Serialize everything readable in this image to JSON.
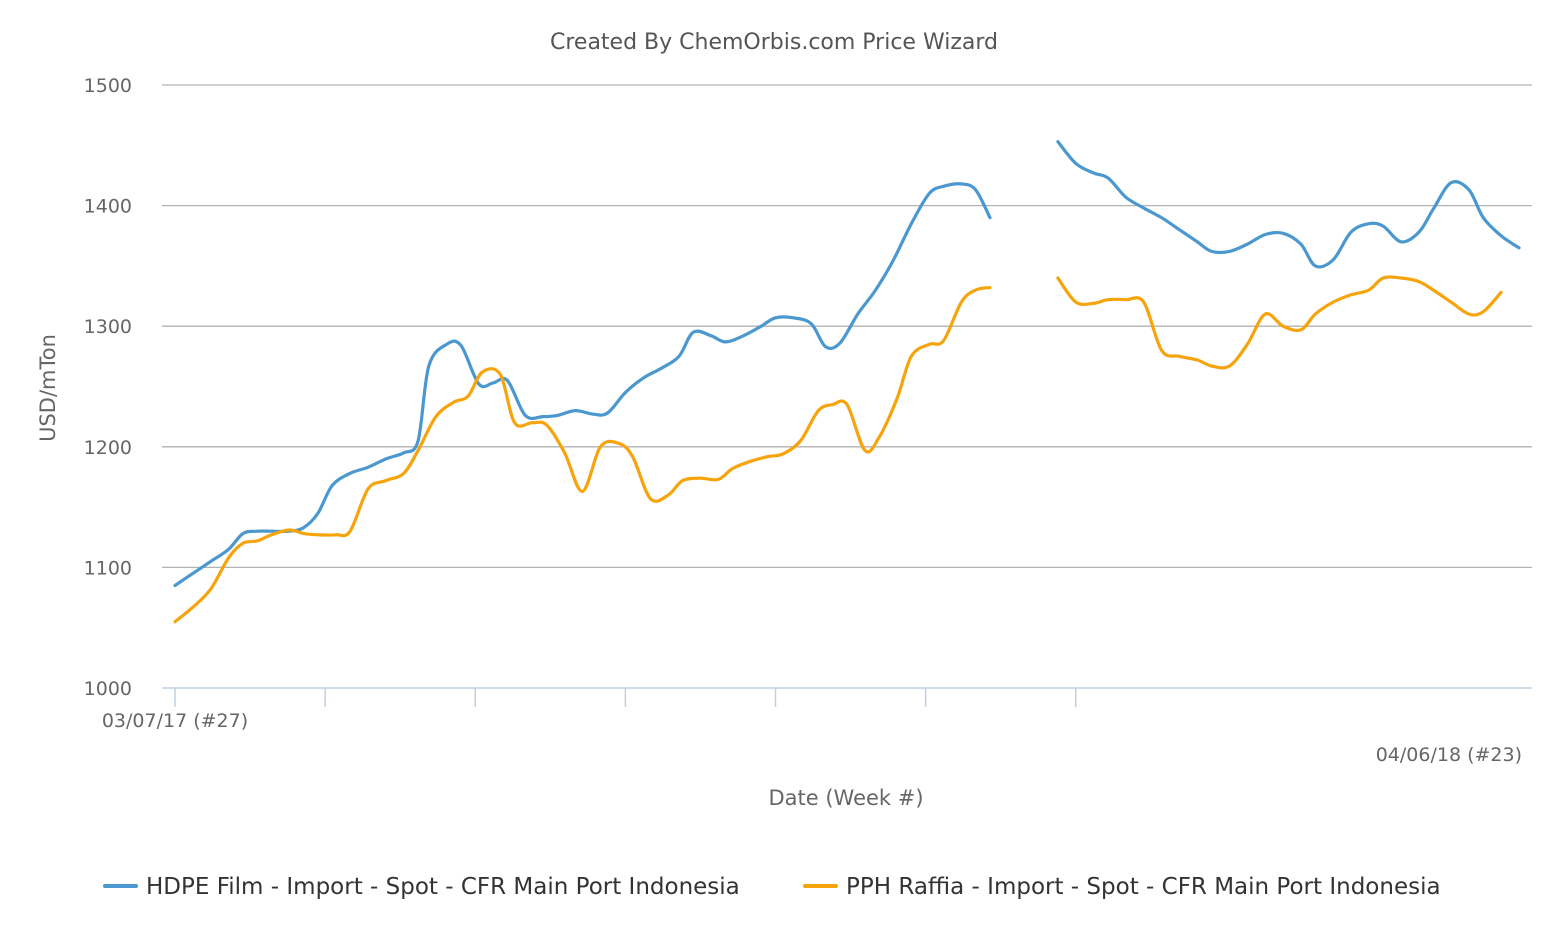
{
  "chart_data": {
    "type": "line",
    "title": "Created By ChemOrbis.com Price Wizard",
    "xlabel": "Date (Week #)",
    "ylabel": "USD/mTon",
    "ylim": [
      1000,
      1500
    ],
    "yticks": [
      1000,
      1100,
      1200,
      1300,
      1400,
      1500
    ],
    "x_start_label": "03/07/17 (#27)",
    "x_end_label": "04/06/18 (#23)",
    "x_start": "2017-07-03",
    "x_end": "2018-06-04",
    "x_tick_dates": [
      "2017-07-03",
      "2017-08-14",
      "2017-09-25",
      "2017-11-06",
      "2017-12-18",
      "2018-01-29",
      "2018-03-12"
    ],
    "grid": true,
    "legend_position": "bottom",
    "series": [
      {
        "name": "HDPE Film - Import - Spot - CFR Main Port Indonesia",
        "color": "#4a98cf",
        "points": [
          [
            "2017-07-03",
            1085
          ],
          [
            "2017-07-08",
            1095
          ],
          [
            "2017-07-13",
            1105
          ],
          [
            "2017-07-18",
            1115
          ],
          [
            "2017-07-22",
            1128
          ],
          [
            "2017-07-26",
            1130
          ],
          [
            "2017-07-30",
            1130
          ],
          [
            "2017-08-04",
            1130
          ],
          [
            "2017-08-08",
            1133
          ],
          [
            "2017-08-12",
            1145
          ],
          [
            "2017-08-16",
            1168
          ],
          [
            "2017-08-21",
            1178
          ],
          [
            "2017-08-26",
            1183
          ],
          [
            "2017-08-31",
            1190
          ],
          [
            "2017-09-05",
            1195
          ],
          [
            "2017-09-09",
            1205
          ],
          [
            "2017-09-12",
            1267
          ],
          [
            "2017-09-17",
            1285
          ],
          [
            "2017-09-21",
            1284
          ],
          [
            "2017-09-26",
            1252
          ],
          [
            "2017-09-30",
            1253
          ],
          [
            "2017-10-04",
            1255
          ],
          [
            "2017-10-09",
            1226
          ],
          [
            "2017-10-14",
            1225
          ],
          [
            "2017-10-18",
            1226
          ],
          [
            "2017-10-23",
            1230
          ],
          [
            "2017-10-28",
            1227
          ],
          [
            "2017-11-01",
            1228
          ],
          [
            "2017-11-06",
            1245
          ],
          [
            "2017-11-11",
            1257
          ],
          [
            "2017-11-16",
            1265
          ],
          [
            "2017-11-21",
            1275
          ],
          [
            "2017-11-25",
            1295
          ],
          [
            "2017-11-30",
            1292
          ],
          [
            "2017-12-04",
            1287
          ],
          [
            "2017-12-09",
            1292
          ],
          [
            "2017-12-14",
            1300
          ],
          [
            "2017-12-18",
            1307
          ],
          [
            "2017-12-23",
            1307
          ],
          [
            "2017-12-28",
            1302
          ],
          [
            "2018-01-01",
            1283
          ],
          [
            "2018-01-05",
            1286
          ],
          [
            "2018-01-10",
            1310
          ],
          [
            "2018-01-15",
            1330
          ],
          [
            "2018-01-20",
            1355
          ],
          [
            "2018-01-25",
            1385
          ],
          [
            "2018-01-30",
            1410
          ],
          [
            "2018-02-03",
            1416
          ],
          [
            "2018-02-08",
            1418
          ],
          [
            "2018-02-12",
            1413
          ],
          [
            "2018-02-16",
            1390
          ],
          null,
          [
            "2018-03-07",
            1453
          ],
          [
            "2018-03-12",
            1435
          ],
          [
            "2018-03-17",
            1427
          ],
          [
            "2018-03-21",
            1423
          ],
          [
            "2018-03-26",
            1407
          ],
          [
            "2018-03-31",
            1398
          ],
          [
            "2018-04-05",
            1390
          ],
          [
            "2018-04-10",
            1380
          ],
          [
            "2018-04-15",
            1370
          ],
          [
            "2018-04-19",
            1362
          ],
          [
            "2018-04-24",
            1362
          ],
          [
            "2018-04-29",
            1368
          ],
          [
            "2018-05-04",
            1376
          ],
          [
            "2018-05-09",
            1377
          ],
          [
            "2018-05-14",
            1368
          ],
          [
            "2018-05-18",
            1350
          ],
          [
            "2018-05-23",
            1355
          ],
          [
            "2018-05-28",
            1378
          ],
          [
            "2018-06-02",
            1385
          ],
          [
            "2018-06-06",
            1383
          ],
          [
            "2018-06-11",
            1370
          ],
          [
            "2018-06-16",
            1378
          ],
          [
            "2018-06-20",
            1397
          ],
          [
            "2018-06-25",
            1419
          ],
          [
            "2018-06-30",
            1413
          ],
          [
            "2018-07-04",
            1390
          ],
          [
            "2018-07-09",
            1375
          ],
          [
            "2018-07-14",
            1365
          ]
        ]
      },
      {
        "name": "PPH Raffia - Import - Spot - CFR Main Port Indonesia",
        "color": "#f7a40c",
        "points": [
          [
            "2017-07-03",
            1055
          ],
          [
            "2017-07-08",
            1067
          ],
          [
            "2017-07-13",
            1082
          ],
          [
            "2017-07-18",
            1108
          ],
          [
            "2017-07-22",
            1120
          ],
          [
            "2017-07-26",
            1122
          ],
          [
            "2017-07-30",
            1127
          ],
          [
            "2017-08-04",
            1131
          ],
          [
            "2017-08-08",
            1128
          ],
          [
            "2017-08-12",
            1127
          ],
          [
            "2017-08-17",
            1127
          ],
          [
            "2017-08-21",
            1130
          ],
          [
            "2017-08-26",
            1165
          ],
          [
            "2017-08-31",
            1172
          ],
          [
            "2017-09-05",
            1178
          ],
          [
            "2017-09-09",
            1197
          ],
          [
            "2017-09-14",
            1225
          ],
          [
            "2017-09-19",
            1237
          ],
          [
            "2017-09-23",
            1242
          ],
          [
            "2017-09-27",
            1262
          ],
          [
            "2017-10-02",
            1260
          ],
          [
            "2017-10-06",
            1220
          ],
          [
            "2017-10-11",
            1220
          ],
          [
            "2017-10-15",
            1218
          ],
          [
            "2017-10-20",
            1195
          ],
          [
            "2017-10-25",
            1163
          ],
          [
            "2017-10-30",
            1200
          ],
          [
            "2017-11-04",
            1203
          ],
          [
            "2017-11-08",
            1192
          ],
          [
            "2017-11-13",
            1157
          ],
          [
            "2017-11-18",
            1160
          ],
          [
            "2017-11-22",
            1172
          ],
          [
            "2017-11-27",
            1174
          ],
          [
            "2017-12-02",
            1173
          ],
          [
            "2017-12-06",
            1182
          ],
          [
            "2017-12-11",
            1188
          ],
          [
            "2017-12-16",
            1192
          ],
          [
            "2017-12-20",
            1194
          ],
          [
            "2017-12-25",
            1205
          ],
          [
            "2017-12-30",
            1230
          ],
          [
            "2018-01-03",
            1235
          ],
          [
            "2018-01-07",
            1235
          ],
          [
            "2018-01-12",
            1197
          ],
          [
            "2018-01-16",
            1208
          ],
          [
            "2018-01-21",
            1240
          ],
          [
            "2018-01-25",
            1275
          ],
          [
            "2018-01-30",
            1285
          ],
          [
            "2018-02-03",
            1288
          ],
          [
            "2018-02-08",
            1320
          ],
          [
            "2018-02-12",
            1330
          ],
          [
            "2018-02-16",
            1332
          ],
          null,
          [
            "2018-03-07",
            1340
          ],
          [
            "2018-03-12",
            1320
          ],
          [
            "2018-03-17",
            1319
          ],
          [
            "2018-03-21",
            1322
          ],
          [
            "2018-03-26",
            1322
          ],
          [
            "2018-03-31",
            1320
          ],
          [
            "2018-04-05",
            1280
          ],
          [
            "2018-04-10",
            1275
          ],
          [
            "2018-04-15",
            1272
          ],
          [
            "2018-04-19",
            1267
          ],
          [
            "2018-04-24",
            1267
          ],
          [
            "2018-04-29",
            1285
          ],
          [
            "2018-05-04",
            1310
          ],
          [
            "2018-05-09",
            1300
          ],
          [
            "2018-05-14",
            1297
          ],
          [
            "2018-05-18",
            1310
          ],
          [
            "2018-05-23",
            1320
          ],
          [
            "2018-05-28",
            1326
          ],
          [
            "2018-06-02",
            1330
          ],
          [
            "2018-06-06",
            1340
          ],
          [
            "2018-06-11",
            1340
          ],
          [
            "2018-06-16",
            1337
          ],
          [
            "2018-06-20",
            1330
          ],
          [
            "2018-06-25",
            1320
          ],
          [
            "2018-06-30",
            1310
          ],
          [
            "2018-07-04",
            1312
          ],
          [
            "2018-07-09",
            1328
          ]
        ]
      }
    ]
  }
}
